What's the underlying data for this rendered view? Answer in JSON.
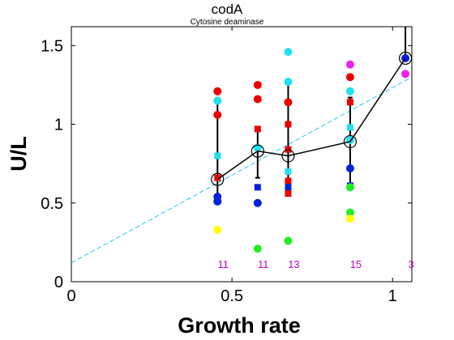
{
  "chart_data": {
    "type": "scatter",
    "title": "codA",
    "subtitle": "Cytosine deaminase",
    "xlabel": "Growth rate",
    "ylabel": "U/L",
    "xlim": [
      0,
      1.06
    ],
    "ylim": [
      0,
      1.62
    ],
    "xticks": [
      0,
      0.5,
      1
    ],
    "xtick_labels": [
      "0",
      "0.5",
      "1"
    ],
    "yticks": [
      0,
      0.5,
      1,
      1.5
    ],
    "ytick_labels": [
      "0",
      "0.5",
      "1",
      "1.5"
    ],
    "grid": false,
    "colors": {
      "red": "#ee0000",
      "cyan": "#22e0ee",
      "blue": "#0022dd",
      "green": "#22ee22",
      "yellow": "#ffff00",
      "magenta": "#ee22ee",
      "line": "#000000",
      "fit": "#22ccee",
      "count": "#cc00cc"
    },
    "points": [
      {
        "x": 0.455,
        "y": 1.21,
        "color": "red",
        "shape": "circle"
      },
      {
        "x": 0.455,
        "y": 1.15,
        "color": "cyan",
        "shape": "circle"
      },
      {
        "x": 0.455,
        "y": 1.06,
        "color": "red",
        "shape": "circle"
      },
      {
        "x": 0.455,
        "y": 0.8,
        "color": "cyan",
        "shape": "square"
      },
      {
        "x": 0.455,
        "y": 0.66,
        "color": "red",
        "shape": "square"
      },
      {
        "x": 0.455,
        "y": 0.54,
        "color": "blue",
        "shape": "circle"
      },
      {
        "x": 0.455,
        "y": 0.51,
        "color": "blue",
        "shape": "circle"
      },
      {
        "x": 0.455,
        "y": 0.33,
        "color": "yellow",
        "shape": "circle"
      },
      {
        "x": 0.58,
        "y": 1.25,
        "color": "red",
        "shape": "circle"
      },
      {
        "x": 0.58,
        "y": 1.16,
        "color": "red",
        "shape": "circle"
      },
      {
        "x": 0.58,
        "y": 0.97,
        "color": "red",
        "shape": "square"
      },
      {
        "x": 0.58,
        "y": 0.85,
        "color": "cyan",
        "shape": "circle"
      },
      {
        "x": 0.58,
        "y": 0.6,
        "color": "blue",
        "shape": "square"
      },
      {
        "x": 0.58,
        "y": 0.5,
        "color": "blue",
        "shape": "circle"
      },
      {
        "x": 0.58,
        "y": 0.21,
        "color": "green",
        "shape": "circle"
      },
      {
        "x": 0.675,
        "y": 1.46,
        "color": "cyan",
        "shape": "circle"
      },
      {
        "x": 0.675,
        "y": 1.27,
        "color": "cyan",
        "shape": "circle"
      },
      {
        "x": 0.675,
        "y": 1.14,
        "color": "red",
        "shape": "circle"
      },
      {
        "x": 0.675,
        "y": 1.0,
        "color": "red",
        "shape": "square"
      },
      {
        "x": 0.675,
        "y": 0.84,
        "color": "red",
        "shape": "square"
      },
      {
        "x": 0.675,
        "y": 0.7,
        "color": "cyan",
        "shape": "square"
      },
      {
        "x": 0.675,
        "y": 0.64,
        "color": "red",
        "shape": "square"
      },
      {
        "x": 0.675,
        "y": 0.6,
        "color": "blue",
        "shape": "square"
      },
      {
        "x": 0.675,
        "y": 0.56,
        "color": "red",
        "shape": "square"
      },
      {
        "x": 0.675,
        "y": 0.26,
        "color": "green",
        "shape": "circle"
      },
      {
        "x": 0.868,
        "y": 1.38,
        "color": "magenta",
        "shape": "circle"
      },
      {
        "x": 0.868,
        "y": 1.3,
        "color": "red",
        "shape": "circle"
      },
      {
        "x": 0.868,
        "y": 1.21,
        "color": "cyan",
        "shape": "circle"
      },
      {
        "x": 0.868,
        "y": 1.14,
        "color": "red",
        "shape": "square"
      },
      {
        "x": 0.868,
        "y": 0.98,
        "color": "cyan",
        "shape": "square"
      },
      {
        "x": 0.868,
        "y": 0.9,
        "color": "cyan",
        "shape": "circle"
      },
      {
        "x": 0.868,
        "y": 0.72,
        "color": "blue",
        "shape": "circle"
      },
      {
        "x": 0.868,
        "y": 0.61,
        "color": "blue",
        "shape": "square"
      },
      {
        "x": 0.868,
        "y": 0.6,
        "color": "green",
        "shape": "circle"
      },
      {
        "x": 0.868,
        "y": 0.44,
        "color": "green",
        "shape": "circle"
      },
      {
        "x": 0.868,
        "y": 0.4,
        "color": "yellow",
        "shape": "circle"
      },
      {
        "x": 1.04,
        "y": 1.42,
        "color": "blue",
        "shape": "circle"
      },
      {
        "x": 1.04,
        "y": 1.32,
        "color": "magenta",
        "shape": "circle"
      }
    ],
    "mean_series": {
      "x": [
        0.455,
        0.58,
        0.675,
        0.868,
        1.04
      ],
      "y": [
        0.65,
        0.83,
        0.8,
        0.89,
        1.42
      ],
      "err_low": [
        0.54,
        0.66,
        0.56,
        0.62,
        1.42
      ],
      "err_high": [
        1.16,
        0.97,
        1.27,
        1.17,
        1.62
      ]
    },
    "fit_line": {
      "x": [
        0,
        1.06
      ],
      "y": [
        0.12,
        1.3
      ]
    },
    "counts": [
      {
        "x": 0.455,
        "label": "11"
      },
      {
        "x": 0.58,
        "label": "11"
      },
      {
        "x": 0.675,
        "label": "13"
      },
      {
        "x": 0.868,
        "label": "15"
      },
      {
        "x": 1.04,
        "label": "3"
      }
    ]
  }
}
